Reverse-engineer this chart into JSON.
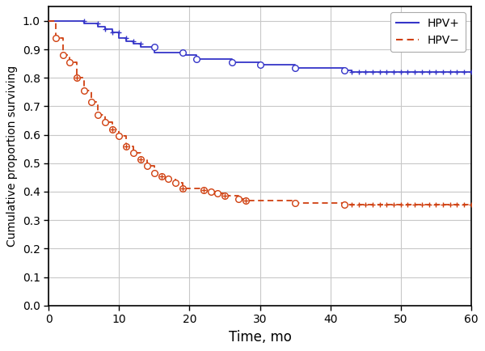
{
  "title": "",
  "xlabel": "Time, mo",
  "ylabel": "Cumulative proportion surviving",
  "xlim": [
    0,
    60
  ],
  "ylim": [
    0,
    1.05
  ],
  "yticks": [
    0,
    0.1,
    0.2,
    0.3,
    0.4,
    0.5,
    0.6,
    0.7,
    0.8,
    0.9,
    1.0
  ],
  "xticks": [
    0,
    10,
    20,
    30,
    40,
    50,
    60
  ],
  "hpv_pos_color": "#3535c8",
  "hpv_neg_color": "#d04010",
  "background_color": "#ffffff",
  "grid_color": "#c8c8c8",
  "hpv_pos_steps": [
    [
      0,
      1.0
    ],
    [
      5,
      1.0
    ],
    [
      5,
      0.99
    ],
    [
      7,
      0.99
    ],
    [
      7,
      0.98
    ],
    [
      8,
      0.98
    ],
    [
      8,
      0.97
    ],
    [
      9,
      0.97
    ],
    [
      9,
      0.96
    ],
    [
      10,
      0.96
    ],
    [
      10,
      0.94
    ],
    [
      11,
      0.94
    ],
    [
      11,
      0.93
    ],
    [
      12,
      0.93
    ],
    [
      12,
      0.92
    ],
    [
      13,
      0.92
    ],
    [
      13,
      0.91
    ],
    [
      15,
      0.91
    ],
    [
      15,
      0.89
    ],
    [
      19,
      0.89
    ],
    [
      19,
      0.88
    ],
    [
      21,
      0.88
    ],
    [
      21,
      0.865
    ],
    [
      26,
      0.865
    ],
    [
      26,
      0.855
    ],
    [
      30,
      0.855
    ],
    [
      30,
      0.845
    ],
    [
      35,
      0.845
    ],
    [
      35,
      0.835
    ],
    [
      42,
      0.835
    ],
    [
      42,
      0.825
    ],
    [
      43,
      0.825
    ],
    [
      43,
      0.82
    ],
    [
      60,
      0.82
    ]
  ],
  "hpv_pos_death_circles": [
    [
      15,
      0.91
    ],
    [
      19,
      0.89
    ],
    [
      21,
      0.865
    ],
    [
      26,
      0.855
    ],
    [
      30,
      0.845
    ],
    [
      35,
      0.835
    ],
    [
      42,
      0.825
    ]
  ],
  "hpv_pos_censored": [
    [
      5,
      1.0
    ],
    [
      7,
      0.99
    ],
    [
      8,
      0.97
    ],
    [
      9,
      0.96
    ],
    [
      10,
      0.96
    ],
    [
      11,
      0.94
    ],
    [
      12,
      0.93
    ],
    [
      13,
      0.92
    ],
    [
      43,
      0.82
    ],
    [
      44,
      0.82
    ],
    [
      45,
      0.82
    ],
    [
      46,
      0.82
    ],
    [
      47,
      0.82
    ],
    [
      48,
      0.82
    ],
    [
      49,
      0.82
    ],
    [
      50,
      0.82
    ],
    [
      51,
      0.82
    ],
    [
      52,
      0.82
    ],
    [
      53,
      0.82
    ],
    [
      54,
      0.82
    ],
    [
      55,
      0.82
    ],
    [
      56,
      0.82
    ],
    [
      57,
      0.82
    ],
    [
      58,
      0.82
    ],
    [
      59,
      0.82
    ],
    [
      60,
      0.82
    ]
  ],
  "hpv_neg_steps": [
    [
      0,
      1.0
    ],
    [
      1,
      1.0
    ],
    [
      1,
      0.94
    ],
    [
      2,
      0.94
    ],
    [
      2,
      0.88
    ],
    [
      3,
      0.88
    ],
    [
      3,
      0.855
    ],
    [
      4,
      0.855
    ],
    [
      4,
      0.8
    ],
    [
      5,
      0.8
    ],
    [
      5,
      0.755
    ],
    [
      6,
      0.755
    ],
    [
      6,
      0.715
    ],
    [
      7,
      0.715
    ],
    [
      7,
      0.67
    ],
    [
      8,
      0.67
    ],
    [
      8,
      0.645
    ],
    [
      9,
      0.645
    ],
    [
      9,
      0.62
    ],
    [
      10,
      0.62
    ],
    [
      10,
      0.595
    ],
    [
      11,
      0.595
    ],
    [
      11,
      0.56
    ],
    [
      12,
      0.56
    ],
    [
      12,
      0.535
    ],
    [
      13,
      0.535
    ],
    [
      13,
      0.515
    ],
    [
      14,
      0.515
    ],
    [
      14,
      0.49
    ],
    [
      15,
      0.49
    ],
    [
      15,
      0.465
    ],
    [
      16,
      0.465
    ],
    [
      16,
      0.455
    ],
    [
      17,
      0.455
    ],
    [
      17,
      0.445
    ],
    [
      18,
      0.445
    ],
    [
      18,
      0.43
    ],
    [
      19,
      0.43
    ],
    [
      19,
      0.41
    ],
    [
      22,
      0.41
    ],
    [
      22,
      0.405
    ],
    [
      23,
      0.405
    ],
    [
      23,
      0.4
    ],
    [
      24,
      0.4
    ],
    [
      24,
      0.395
    ],
    [
      25,
      0.395
    ],
    [
      25,
      0.385
    ],
    [
      27,
      0.385
    ],
    [
      27,
      0.375
    ],
    [
      28,
      0.375
    ],
    [
      28,
      0.37
    ],
    [
      35,
      0.37
    ],
    [
      35,
      0.36
    ],
    [
      42,
      0.36
    ],
    [
      42,
      0.355
    ],
    [
      60,
      0.355
    ]
  ],
  "hpv_neg_death_circles": [
    [
      1,
      0.94
    ],
    [
      2,
      0.88
    ],
    [
      3,
      0.855
    ],
    [
      4,
      0.8
    ],
    [
      5,
      0.755
    ],
    [
      6,
      0.715
    ],
    [
      7,
      0.67
    ],
    [
      8,
      0.645
    ],
    [
      9,
      0.62
    ],
    [
      10,
      0.595
    ],
    [
      11,
      0.56
    ],
    [
      12,
      0.535
    ],
    [
      13,
      0.515
    ],
    [
      14,
      0.49
    ],
    [
      15,
      0.465
    ],
    [
      16,
      0.455
    ],
    [
      17,
      0.445
    ],
    [
      18,
      0.43
    ],
    [
      19,
      0.41
    ],
    [
      22,
      0.405
    ],
    [
      23,
      0.4
    ],
    [
      24,
      0.395
    ],
    [
      25,
      0.385
    ],
    [
      27,
      0.375
    ],
    [
      28,
      0.37
    ],
    [
      35,
      0.36
    ],
    [
      42,
      0.355
    ]
  ],
  "hpv_neg_censored": [
    [
      4,
      0.8
    ],
    [
      9,
      0.62
    ],
    [
      11,
      0.56
    ],
    [
      13,
      0.515
    ],
    [
      16,
      0.455
    ],
    [
      19,
      0.41
    ],
    [
      22,
      0.405
    ],
    [
      25,
      0.385
    ],
    [
      28,
      0.37
    ],
    [
      43,
      0.355
    ],
    [
      44,
      0.355
    ],
    [
      45,
      0.355
    ],
    [
      46,
      0.355
    ],
    [
      47,
      0.355
    ],
    [
      48,
      0.355
    ],
    [
      49,
      0.355
    ],
    [
      50,
      0.355
    ],
    [
      51,
      0.355
    ],
    [
      52,
      0.355
    ],
    [
      53,
      0.355
    ],
    [
      54,
      0.355
    ],
    [
      55,
      0.355
    ],
    [
      56,
      0.355
    ],
    [
      57,
      0.355
    ],
    [
      58,
      0.355
    ],
    [
      59,
      0.355
    ],
    [
      60,
      0.355
    ]
  ],
  "figsize": [
    6.0,
    4.34
  ],
  "dpi": 100
}
